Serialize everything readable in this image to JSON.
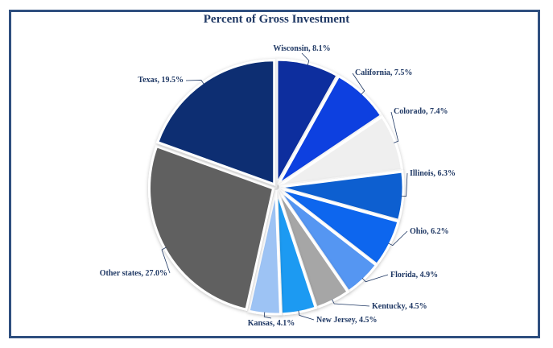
{
  "chart_data": {
    "type": "pie",
    "title": "Percent of Gross Investment",
    "slices": [
      {
        "label": "Wisconsin",
        "value": 8.1,
        "text": "Wisconsin, 8.1%",
        "color": "#0b2d9e"
      },
      {
        "label": "California",
        "value": 7.5,
        "text": "California, 7.5%",
        "color": "#0a3fe0"
      },
      {
        "label": "Colorado",
        "value": 7.4,
        "text": "Colorado, 7.4%",
        "color": "#efefef"
      },
      {
        "label": "Illinois",
        "value": 6.3,
        "text": "Illinois, 6.3%",
        "color": "#0a5fd0"
      },
      {
        "label": "Ohio",
        "value": 6.2,
        "text": "Ohio, 6.2%",
        "color": "#0a66ee"
      },
      {
        "label": "Florida",
        "value": 4.9,
        "text": "Florida, 4.9%",
        "color": "#5596f2"
      },
      {
        "label": "Kentucky",
        "value": 4.5,
        "text": "Kentucky, 4.5%",
        "color": "#a6a6a6"
      },
      {
        "label": "New Jersey",
        "value": 4.5,
        "text": "New Jersey, 4.5%",
        "color": "#1a9af2"
      },
      {
        "label": "Kansas",
        "value": 4.1,
        "text": "Kansas, 4.1%",
        "color": "#9dc3f4"
      },
      {
        "label": "Other states",
        "value": 27.0,
        "text": "Other states, 27.0%",
        "color": "#606060"
      },
      {
        "label": "Texas",
        "value": 19.5,
        "text": "Texas, 19.5%",
        "color": "#072f72"
      }
    ],
    "start": "12 o'clock",
    "direction": "clockwise",
    "legend": "none"
  }
}
